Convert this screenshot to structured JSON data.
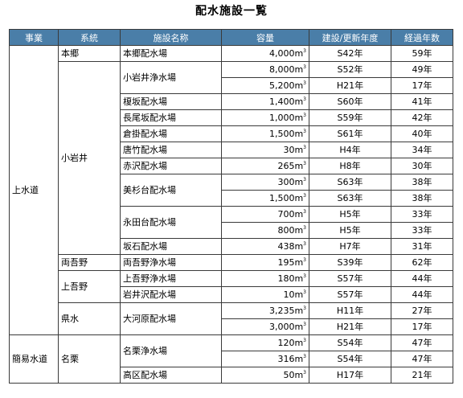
{
  "title": "配水施設一覧",
  "headers": [
    "事業",
    "系統",
    "施設名称",
    "容量",
    "建設/更新年度",
    "経過年数"
  ],
  "unit": "m",
  "unit_power": "3",
  "groups": [
    {
      "business": "上水道",
      "systems": [
        {
          "name": "本郷",
          "facilities": [
            {
              "name": "本郷配水場",
              "rows": [
                {
                  "capacity": "4,000",
                  "year": "S42年",
                  "age": "59年"
                }
              ]
            }
          ]
        },
        {
          "name": "小岩井",
          "facilities": [
            {
              "name": "小岩井浄水場",
              "rows": [
                {
                  "capacity": "8,000",
                  "year": "S52年",
                  "age": "49年"
                },
                {
                  "capacity": "5,200",
                  "year": "H21年",
                  "age": "17年"
                }
              ]
            },
            {
              "name": "榎坂配水場",
              "rows": [
                {
                  "capacity": "1,400",
                  "year": "S60年",
                  "age": "41年"
                }
              ]
            },
            {
              "name": "長尾坂配水場",
              "rows": [
                {
                  "capacity": "1,000",
                  "year": "S59年",
                  "age": "42年"
                }
              ]
            },
            {
              "name": "倉掛配水場",
              "rows": [
                {
                  "capacity": "1,500",
                  "year": "S61年",
                  "age": "40年"
                }
              ]
            },
            {
              "name": "唐竹配水場",
              "rows": [
                {
                  "capacity": "30",
                  "year": "H4年",
                  "age": "34年"
                }
              ]
            },
            {
              "name": "赤沢配水場",
              "rows": [
                {
                  "capacity": "265",
                  "year": "H8年",
                  "age": "30年"
                }
              ]
            },
            {
              "name": "美杉台配水場",
              "rows": [
                {
                  "capacity": "300",
                  "year": "S63年",
                  "age": "38年"
                },
                {
                  "capacity": "1,500",
                  "year": "S63年",
                  "age": "38年"
                }
              ]
            },
            {
              "name": "永田台配水場",
              "rows": [
                {
                  "capacity": "700",
                  "year": "H5年",
                  "age": "33年"
                },
                {
                  "capacity": "800",
                  "year": "H5年",
                  "age": "33年"
                }
              ]
            },
            {
              "name": "坂石配水場",
              "rows": [
                {
                  "capacity": "438",
                  "year": "H7年",
                  "age": "31年"
                }
              ]
            }
          ]
        },
        {
          "name": "両吾野",
          "facilities": [
            {
              "name": "両吾野浄水場",
              "rows": [
                {
                  "capacity": "195",
                  "year": "S39年",
                  "age": "62年"
                }
              ]
            }
          ]
        },
        {
          "name": "上吾野",
          "facilities": [
            {
              "name": "上吾野浄水場",
              "rows": [
                {
                  "capacity": "180",
                  "year": "S57年",
                  "age": "44年"
                }
              ]
            },
            {
              "name": "岩井沢配水場",
              "rows": [
                {
                  "capacity": "10",
                  "year": "S57年",
                  "age": "44年"
                }
              ]
            }
          ]
        },
        {
          "name": "県水",
          "facilities": [
            {
              "name": "大河原配水場",
              "rows": [
                {
                  "capacity": "3,235",
                  "year": "H11年",
                  "age": "27年"
                },
                {
                  "capacity": "3,000",
                  "year": "H21年",
                  "age": "17年"
                }
              ]
            }
          ]
        }
      ]
    },
    {
      "business": "簡易水道",
      "systems": [
        {
          "name": "名栗",
          "facilities": [
            {
              "name": "名栗浄水場",
              "rows": [
                {
                  "capacity": "120",
                  "year": "S54年",
                  "age": "47年"
                },
                {
                  "capacity": "316",
                  "year": "S54年",
                  "age": "47年"
                }
              ]
            },
            {
              "name": "高区配水場",
              "rows": [
                {
                  "capacity": "50",
                  "year": "H17年",
                  "age": "21年"
                }
              ]
            }
          ]
        }
      ]
    }
  ]
}
